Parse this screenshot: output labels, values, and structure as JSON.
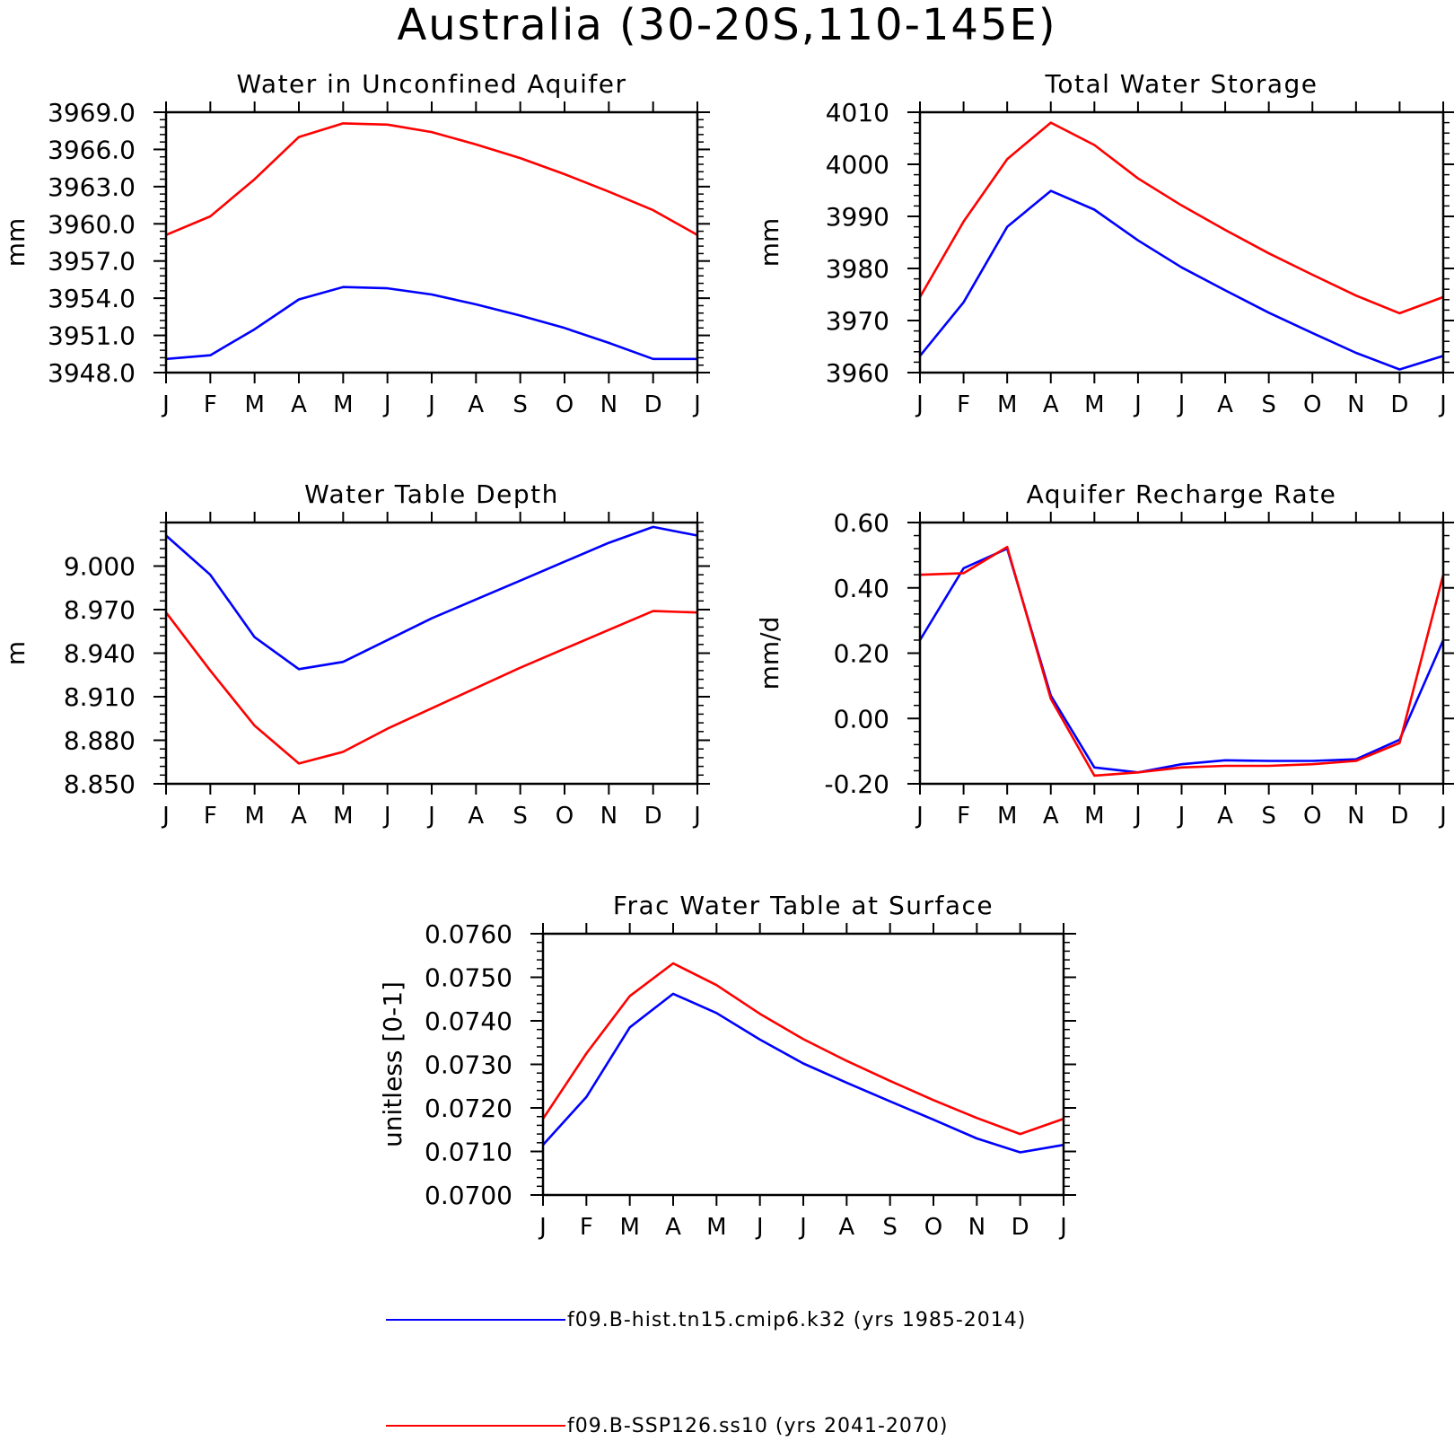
{
  "figure": {
    "title": "Australia (30-20S,110-145E)"
  },
  "legend": [
    {
      "series": "f09.B-hist.tn15.cmip6.k32 (yrs 1985-2014)",
      "color": "#0000ff"
    },
    {
      "series": "f09.B-SSP126.ss10 (yrs 2041-2070)",
      "color": "#ff0000"
    }
  ],
  "chart_data": [
    {
      "type": "line",
      "title": "Water in Unconfined Aquifer",
      "ylabel": "mm",
      "xlabel": "",
      "categories": [
        "J",
        "F",
        "M",
        "A",
        "M",
        "J",
        "J",
        "A",
        "S",
        "O",
        "N",
        "D",
        "J"
      ],
      "ylim": [
        3948.0,
        3969.0
      ],
      "yticks": [
        "3948.0",
        "3951.0",
        "3954.0",
        "3957.0",
        "3960.0",
        "3963.0",
        "3966.0",
        "3969.0"
      ],
      "series": [
        {
          "name": "f09.B-hist.tn15.cmip6.k32 (yrs 1985-2014)",
          "color": "#0000ff",
          "values": [
            3949.1,
            3949.4,
            3951.5,
            3953.9,
            3954.9,
            3954.8,
            3954.3,
            3953.5,
            3952.6,
            3951.6,
            3950.4,
            3949.1,
            3949.1
          ]
        },
        {
          "name": "f09.B-SSP126.ss10 (yrs 2041-2070)",
          "color": "#ff0000",
          "values": [
            3959.1,
            3960.6,
            3963.6,
            3967.0,
            3968.1,
            3968.0,
            3967.4,
            3966.4,
            3965.3,
            3964.0,
            3962.6,
            3961.1,
            3959.1
          ]
        }
      ]
    },
    {
      "type": "line",
      "title": "Total Water Storage",
      "ylabel": "mm",
      "xlabel": "",
      "categories": [
        "J",
        "F",
        "M",
        "A",
        "M",
        "J",
        "J",
        "A",
        "S",
        "O",
        "N",
        "D",
        "J"
      ],
      "ylim": [
        3960,
        4010
      ],
      "yticks": [
        "3960",
        "3970",
        "3980",
        "3990",
        "4000",
        "4010"
      ],
      "series": [
        {
          "name": "f09.B-hist.tn15.cmip6.k32 (yrs 1985-2014)",
          "color": "#0000ff",
          "values": [
            3963.2,
            3973.5,
            3988.0,
            3994.9,
            3991.3,
            3985.4,
            3980.2,
            3975.8,
            3971.5,
            3967.6,
            3963.8,
            3960.6,
            3963.2
          ]
        },
        {
          "name": "f09.B-SSP126.ss10 (yrs 2041-2070)",
          "color": "#ff0000",
          "values": [
            3974.5,
            3989.0,
            4001.0,
            4008.0,
            4003.7,
            3997.3,
            3992.1,
            3987.4,
            3982.9,
            3978.8,
            3974.8,
            3971.4,
            3974.5
          ]
        }
      ]
    },
    {
      "type": "line",
      "title": "Water Table Depth",
      "ylabel": "m",
      "xlabel": "",
      "categories": [
        "J",
        "F",
        "M",
        "A",
        "M",
        "J",
        "J",
        "A",
        "S",
        "O",
        "N",
        "D",
        "J"
      ],
      "ylim": [
        8.85,
        9.03
      ],
      "yticks": [
        "8.850",
        "8.880",
        "8.910",
        "8.940",
        "8.970",
        "9.000"
      ],
      "series": [
        {
          "name": "f09.B-hist.tn15.cmip6.k32 (yrs 1985-2014)",
          "color": "#0000ff",
          "values": [
            9.021,
            8.994,
            8.951,
            8.929,
            8.934,
            8.949,
            8.964,
            8.977,
            8.99,
            9.003,
            9.016,
            9.027,
            9.021
          ]
        },
        {
          "name": "f09.B-SSP126.ss10 (yrs 2041-2070)",
          "color": "#ff0000",
          "values": [
            8.968,
            8.928,
            8.89,
            8.864,
            8.872,
            8.888,
            8.902,
            8.916,
            8.93,
            8.943,
            8.956,
            8.969,
            8.968
          ]
        }
      ]
    },
    {
      "type": "line",
      "title": "Aquifer Recharge Rate",
      "ylabel": "mm/d",
      "xlabel": "",
      "categories": [
        "J",
        "F",
        "M",
        "A",
        "M",
        "J",
        "J",
        "A",
        "S",
        "O",
        "N",
        "D",
        "J"
      ],
      "ylim": [
        -0.2,
        0.6
      ],
      "yticks": [
        "-0.20",
        "0.00",
        "0.20",
        "0.40",
        "0.60"
      ],
      "series": [
        {
          "name": "f09.B-hist.tn15.cmip6.k32 (yrs 1985-2014)",
          "color": "#0000ff",
          "values": [
            0.24,
            0.46,
            0.52,
            0.07,
            -0.15,
            -0.165,
            -0.14,
            -0.128,
            -0.13,
            -0.13,
            -0.125,
            -0.065,
            0.24
          ]
        },
        {
          "name": "f09.B-SSP126.ss10 (yrs 2041-2070)",
          "color": "#ff0000",
          "values": [
            0.44,
            0.445,
            0.525,
            0.06,
            -0.175,
            -0.165,
            -0.15,
            -0.145,
            -0.145,
            -0.14,
            -0.13,
            -0.075,
            0.44
          ]
        }
      ]
    },
    {
      "type": "line",
      "title": "Frac Water Table at Surface",
      "ylabel": "unitless [0-1]",
      "xlabel": "",
      "categories": [
        "J",
        "F",
        "M",
        "A",
        "M",
        "J",
        "J",
        "A",
        "S",
        "O",
        "N",
        "D",
        "J"
      ],
      "ylim": [
        0.07,
        0.076
      ],
      "yticks": [
        "0.0700",
        "0.0710",
        "0.0720",
        "0.0730",
        "0.0740",
        "0.0750",
        "0.0760"
      ],
      "series": [
        {
          "name": "f09.B-hist.tn15.cmip6.k32 (yrs 1985-2014)",
          "color": "#0000ff",
          "values": [
            0.07115,
            0.07225,
            0.07385,
            0.07462,
            0.07418,
            0.07357,
            0.07302,
            0.07258,
            0.07215,
            0.07173,
            0.0713,
            0.07098,
            0.07115
          ]
        },
        {
          "name": "f09.B-SSP126.ss10 (yrs 2041-2070)",
          "color": "#ff0000",
          "values": [
            0.07175,
            0.07325,
            0.07457,
            0.07532,
            0.07482,
            0.07416,
            0.07358,
            0.07308,
            0.07262,
            0.07218,
            0.07177,
            0.0714,
            0.07175
          ]
        }
      ]
    }
  ]
}
